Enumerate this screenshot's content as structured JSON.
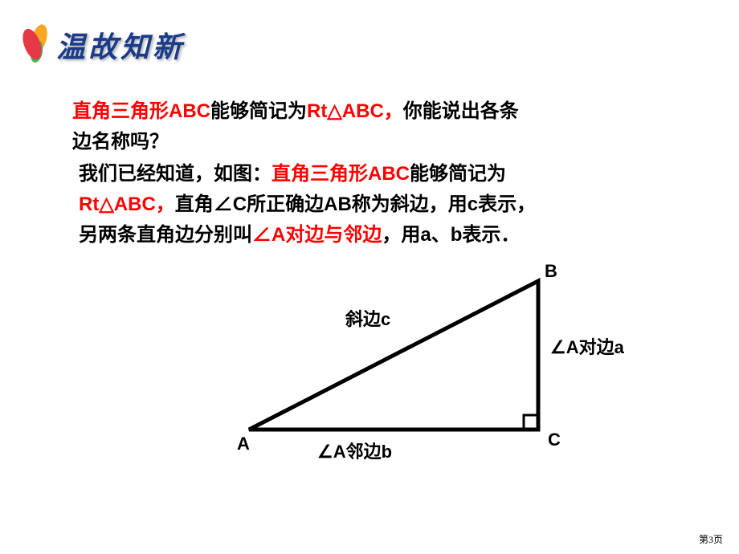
{
  "header": {
    "title": "温故知新"
  },
  "question": {
    "line1_red": "直角三角形ABC",
    "line1_black1": "能够简记为",
    "line1_red2": "Rt△ABC，",
    "line1_black2": "你能说出各条",
    "line2": "边名称吗？"
  },
  "answer": {
    "line1_black1": "我们已经知道，如图：",
    "line1_red": "直角三角形ABC",
    "line1_black2": "能够简记为",
    "line2_red": "Rt△ABC，",
    "line2_black": "直角∠C所正确边AB称为斜边，用c表示，",
    "line3_black1": "另两条直角边分别叫",
    "line3_red": "∠A对边与邻边",
    "line3_black2": "，用a、b表示．"
  },
  "diagram": {
    "vertexA": "A",
    "vertexB": "B",
    "vertexC": "C",
    "hypotenuse": "斜边c",
    "opposite": "∠A对边a",
    "adjacent": "∠A邻边b",
    "stroke_color": "#000000",
    "stroke_width": 5,
    "points": {
      "A": [
        60,
        205
      ],
      "B": [
        420,
        20
      ],
      "C": [
        420,
        205
      ]
    },
    "right_angle_size": 18
  },
  "pageNumber": "第3页"
}
